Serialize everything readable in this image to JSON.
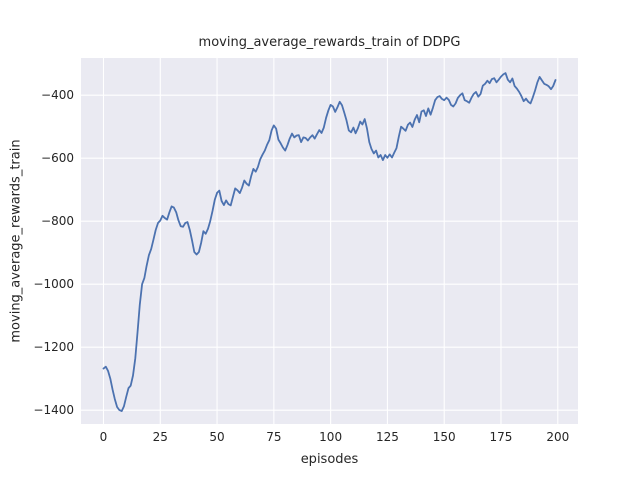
{
  "chart_data": {
    "type": "line",
    "title": "moving_average_rewards_train of DDPG",
    "xlabel": "episodes",
    "ylabel": "moving_average_rewards_train",
    "legend": null,
    "grid": true,
    "x": {
      "start": 0,
      "step": 1,
      "count": 200
    },
    "series": [
      {
        "name": "moving_average_rewards_train",
        "values": [
          -1268,
          -1262,
          -1275,
          -1300,
          -1335,
          -1365,
          -1390,
          -1400,
          -1403,
          -1388,
          -1358,
          -1330,
          -1322,
          -1290,
          -1235,
          -1150,
          -1065,
          -1000,
          -980,
          -942,
          -908,
          -888,
          -858,
          -828,
          -806,
          -798,
          -783,
          -790,
          -795,
          -772,
          -753,
          -757,
          -772,
          -797,
          -816,
          -818,
          -806,
          -803,
          -828,
          -862,
          -898,
          -906,
          -898,
          -868,
          -832,
          -840,
          -824,
          -800,
          -768,
          -732,
          -710,
          -703,
          -736,
          -749,
          -734,
          -746,
          -750,
          -722,
          -696,
          -702,
          -711,
          -694,
          -671,
          -681,
          -687,
          -658,
          -634,
          -643,
          -628,
          -604,
          -589,
          -576,
          -558,
          -543,
          -512,
          -496,
          -506,
          -541,
          -553,
          -566,
          -576,
          -558,
          -538,
          -522,
          -534,
          -528,
          -527,
          -549,
          -534,
          -536,
          -544,
          -534,
          -527,
          -538,
          -524,
          -511,
          -520,
          -503,
          -472,
          -448,
          -431,
          -436,
          -453,
          -438,
          -421,
          -432,
          -456,
          -480,
          -512,
          -518,
          -503,
          -521,
          -505,
          -484,
          -493,
          -476,
          -506,
          -549,
          -571,
          -585,
          -576,
          -598,
          -590,
          -606,
          -590,
          -599,
          -588,
          -598,
          -583,
          -568,
          -532,
          -500,
          -506,
          -513,
          -494,
          -487,
          -501,
          -478,
          -463,
          -486,
          -452,
          -448,
          -466,
          -442,
          -462,
          -440,
          -416,
          -406,
          -403,
          -412,
          -416,
          -408,
          -415,
          -431,
          -436,
          -426,
          -409,
          -400,
          -394,
          -416,
          -419,
          -424,
          -408,
          -396,
          -390,
          -405,
          -396,
          -370,
          -364,
          -354,
          -362,
          -349,
          -346,
          -359,
          -351,
          -341,
          -334,
          -330,
          -351,
          -359,
          -347,
          -371,
          -379,
          -390,
          -403,
          -419,
          -411,
          -421,
          -426,
          -407,
          -385,
          -360,
          -342,
          -353,
          -364,
          -367,
          -372,
          -381,
          -371,
          -352
        ]
      }
    ],
    "xticks": {
      "values": [
        0,
        25,
        50,
        75,
        100,
        125,
        150,
        175,
        200
      ],
      "labels": [
        "0",
        "25",
        "50",
        "75",
        "100",
        "125",
        "150",
        "175",
        "200"
      ]
    },
    "yticks": {
      "values": [
        -400,
        -600,
        -800,
        -1000,
        -1200,
        -1400
      ],
      "labels": [
        "−400",
        "−600",
        "−800",
        "−1000",
        "−1200",
        "−1400"
      ]
    },
    "xlim": [
      -9.9,
      208.9
    ],
    "ylim": [
      -1444,
      -282
    ],
    "legend_position": "none",
    "colors": {
      "line": "#4C72B0",
      "plot_background": "#EAEAF2",
      "grid": "#FFFFFF",
      "text": "#262626",
      "figure_background": "#FFFFFF"
    }
  }
}
